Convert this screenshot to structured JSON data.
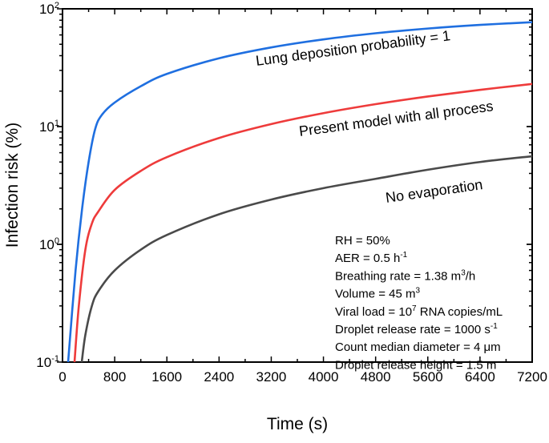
{
  "chart_data": {
    "type": "line",
    "xlabel": "Time (s)",
    "ylabel": "Infection risk (%)",
    "xlim": [
      0,
      7200
    ],
    "ylim": [
      0.1,
      100
    ],
    "yscale": "log",
    "grid": false,
    "xticks": [
      "0",
      "800",
      "1600",
      "2400",
      "3200",
      "4000",
      "4800",
      "5600",
      "6400",
      "7200"
    ],
    "yticks": [
      {
        "base": "10",
        "exp": "-1"
      },
      {
        "base": "10",
        "exp": "0"
      },
      {
        "base": "10",
        "exp": "1"
      },
      {
        "base": "10",
        "exp": "2"
      }
    ],
    "series": [
      {
        "name": "Lung deposition probability = 1",
        "color": "#1f6fe0",
        "x": [
          86,
          200,
          300,
          400,
          500,
          600,
          800,
          1200,
          1600,
          2400,
          3200,
          4000,
          4800,
          5600,
          6400,
          7200
        ],
        "y": [
          0.1,
          0.6,
          2,
          5,
          9.5,
          12.5,
          16,
          22,
          28,
          38,
          47,
          55,
          62,
          68,
          73,
          77
        ]
      },
      {
        "name": "Present model with all process",
        "color": "#ee3b3b",
        "x": [
          184,
          250,
          350,
          450,
          550,
          800,
          1200,
          1600,
          2400,
          3200,
          4000,
          4800,
          5600,
          6400,
          7200
        ],
        "y": [
          0.1,
          0.3,
          0.9,
          1.5,
          1.9,
          2.9,
          4.2,
          5.5,
          8,
          10.5,
          13,
          15.5,
          18,
          20.5,
          23
        ]
      },
      {
        "name": "No evaporation",
        "color": "#4a4a4a",
        "x": [
          295,
          350,
          450,
          550,
          800,
          1200,
          1600,
          2400,
          3200,
          4000,
          4800,
          5600,
          6400,
          7200
        ],
        "y": [
          0.1,
          0.17,
          0.3,
          0.4,
          0.6,
          0.9,
          1.2,
          1.8,
          2.4,
          3,
          3.6,
          4.3,
          5,
          5.6
        ]
      }
    ],
    "annotations": [
      {
        "text": "RH = 50%"
      },
      {
        "text": "AER = 0.5 h",
        "sup": "-1"
      },
      {
        "text": "Breathing rate = 1.38 m",
        "sup": "3",
        "after": "/h"
      },
      {
        "text": "Volume = 45 m",
        "sup": "3"
      },
      {
        "text": "Viral load = 10",
        "sup": "7",
        "after": " RNA copies/mL"
      },
      {
        "text": "Droplet release rate = 1000 s",
        "sup": "-1"
      },
      {
        "text": "Count median diameter = 4 μm"
      },
      {
        "text": "Droplet release height = 1.5 m"
      }
    ]
  }
}
